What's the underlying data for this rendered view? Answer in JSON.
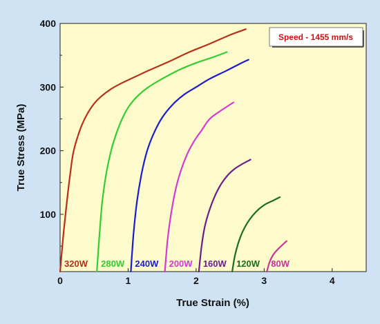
{
  "chart_data": {
    "type": "line",
    "xlabel": "True Strain (%)",
    "ylabel": "True Stress (MPa)",
    "xlim": [
      0,
      4.5
    ],
    "ylim": [
      10,
      400
    ],
    "xticks": [
      0,
      1,
      2,
      3,
      4
    ],
    "yticks": [
      100,
      200,
      300,
      400
    ],
    "grid": false,
    "annotation": "Speed - 1455 mm/s",
    "colors": {
      "plot_background": "#fdfacb",
      "page_background": "#cfe3f5",
      "annotation_text": "#d01010"
    },
    "series": [
      {
        "label": "320W",
        "color": "#b5301a",
        "x": [
          0.0,
          0.05,
          0.1,
          0.15,
          0.2,
          0.3,
          0.4,
          0.5,
          0.6,
          0.75,
          0.9,
          1.1,
          1.3,
          1.6,
          1.9,
          2.2,
          2.5,
          2.73
        ],
        "y": [
          10,
          70,
          120,
          165,
          200,
          235,
          258,
          274,
          285,
          297,
          306,
          316,
          326,
          340,
          355,
          368,
          382,
          391
        ]
      },
      {
        "label": "280W",
        "color": "#33cc33",
        "x": [
          0.54,
          0.58,
          0.62,
          0.68,
          0.75,
          0.83,
          0.92,
          1.02,
          1.15,
          1.3,
          1.5,
          1.75,
          2.0,
          2.25,
          2.45
        ],
        "y": [
          10,
          70,
          120,
          165,
          200,
          228,
          252,
          271,
          287,
          300,
          313,
          327,
          338,
          347,
          355
        ]
      },
      {
        "label": "240W",
        "color": "#1a1ad2",
        "x": [
          1.04,
          1.08,
          1.13,
          1.2,
          1.28,
          1.38,
          1.5,
          1.65,
          1.82,
          2.0,
          2.2,
          2.45,
          2.65,
          2.77
        ],
        "y": [
          10,
          70,
          120,
          165,
          200,
          228,
          252,
          272,
          288,
          300,
          313,
          326,
          337,
          343
        ]
      },
      {
        "label": "200W",
        "color": "#d23ad2",
        "x": [
          1.54,
          1.58,
          1.63,
          1.7,
          1.78,
          1.87,
          1.97,
          2.08,
          2.2,
          2.35,
          2.55
        ],
        "y": [
          10,
          60,
          100,
          140,
          170,
          195,
          215,
          232,
          250,
          262,
          276
        ]
      },
      {
        "label": "160W",
        "color": "#6a1d8a",
        "x": [
          2.04,
          2.08,
          2.13,
          2.2,
          2.28,
          2.37,
          2.46,
          2.56,
          2.66,
          2.8
        ],
        "y": [
          10,
          50,
          82,
          108,
          130,
          148,
          161,
          171,
          178,
          186
        ]
      },
      {
        "label": "120W",
        "color": "#1a6e1a",
        "x": [
          2.53,
          2.57,
          2.62,
          2.68,
          2.75,
          2.83,
          2.92,
          3.02,
          3.12,
          3.23
        ],
        "y": [
          10,
          35,
          55,
          72,
          86,
          98,
          108,
          116,
          121,
          127
        ]
      },
      {
        "label": "80W",
        "color": "#cc3399",
        "x": [
          3.04,
          3.08,
          3.13,
          3.2,
          3.27,
          3.33
        ],
        "y": [
          10,
          25,
          36,
          45,
          52,
          58
        ]
      }
    ]
  }
}
